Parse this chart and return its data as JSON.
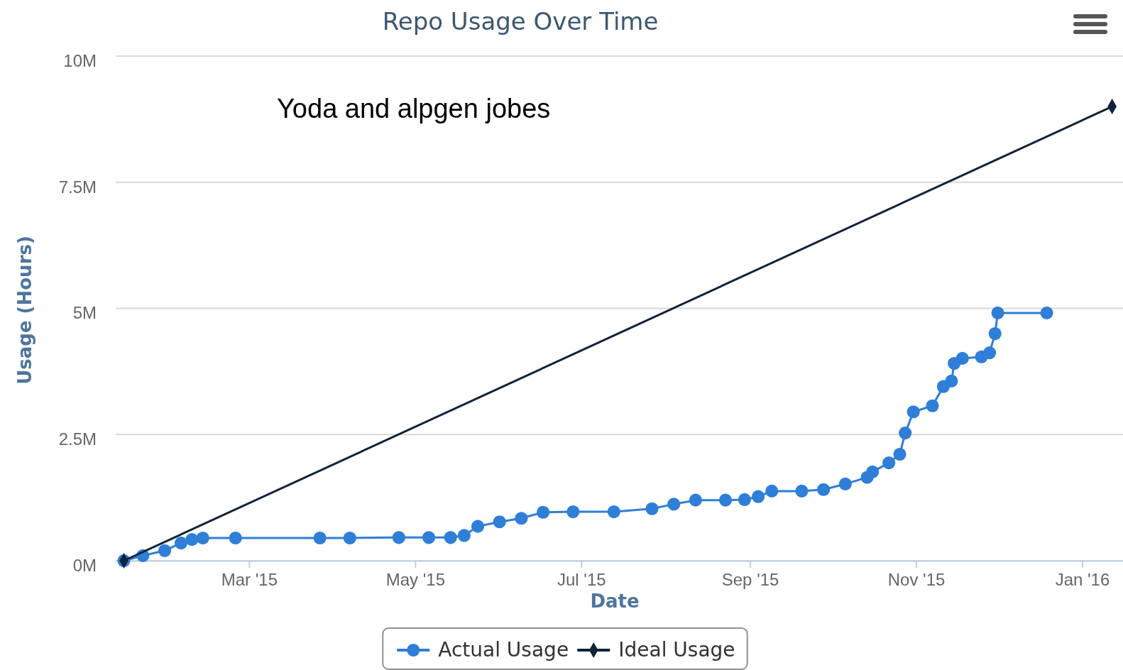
{
  "chart_data": {
    "type": "line",
    "title": "Repo Usage Over Time",
    "xlabel": "Date",
    "ylabel": "Usage (Hours)",
    "annotations": [
      "Yoda and alpgen jobes"
    ],
    "xlim": [
      "2015-01-11",
      "2016-01-16"
    ],
    "xticks": [
      {
        "value": "2015-03-01",
        "label": "Mar '15"
      },
      {
        "value": "2015-05-01",
        "label": "May '15"
      },
      {
        "value": "2015-07-01",
        "label": "Jul '15"
      },
      {
        "value": "2015-09-01",
        "label": "Sep '15"
      },
      {
        "value": "2015-11-01",
        "label": "Nov '15"
      },
      {
        "value": "2016-01-01",
        "label": "Jan '16"
      }
    ],
    "ylim": [
      0,
      10000000
    ],
    "yticks": [
      {
        "value": 0,
        "label": "0M"
      },
      {
        "value": 2500000,
        "label": "2.5M"
      },
      {
        "value": 5000000,
        "label": "5M"
      },
      {
        "value": 7500000,
        "label": "7.5M"
      },
      {
        "value": 10000000,
        "label": "10M"
      }
    ],
    "grid": "y",
    "legend": "bottom",
    "line_style": "solid",
    "series": [
      {
        "name": "Actual Usage",
        "color": "#2f7ed8",
        "marker": "circle",
        "x": [
          "2015-01-14",
          "2015-01-21",
          "2015-01-29",
          "2015-02-04",
          "2015-02-08",
          "2015-02-12",
          "2015-02-24",
          "2015-03-27",
          "2015-04-07",
          "2015-04-25",
          "2015-05-06",
          "2015-05-14",
          "2015-05-19",
          "2015-05-24",
          "2015-06-01",
          "2015-06-09",
          "2015-06-17",
          "2015-06-28",
          "2015-07-13",
          "2015-07-27",
          "2015-08-04",
          "2015-08-12",
          "2015-08-23",
          "2015-08-30",
          "2015-09-04",
          "2015-09-09",
          "2015-09-20",
          "2015-09-28",
          "2015-10-06",
          "2015-10-14",
          "2015-10-16",
          "2015-10-22",
          "2015-10-26",
          "2015-10-28",
          "2015-10-31",
          "2015-11-07",
          "2015-11-11",
          "2015-11-14",
          "2015-11-15",
          "2015-11-18",
          "2015-11-25",
          "2015-11-28",
          "2015-11-30",
          "2015-12-01",
          "2015-12-19"
        ],
        "values": [
          0,
          100000,
          200000,
          350000,
          420000,
          450000,
          450000,
          450000,
          450000,
          460000,
          460000,
          460000,
          500000,
          680000,
          770000,
          840000,
          960000,
          970000,
          970000,
          1030000,
          1120000,
          1200000,
          1200000,
          1210000,
          1270000,
          1380000,
          1380000,
          1410000,
          1520000,
          1650000,
          1760000,
          1940000,
          2110000,
          2530000,
          2950000,
          3070000,
          3450000,
          3560000,
          3910000,
          4010000,
          4040000,
          4120000,
          4500000,
          4910000,
          4910000
        ]
      },
      {
        "name": "Ideal Usage",
        "color": "#0d233a",
        "marker": "diamond",
        "x": [
          "2015-01-14",
          "2016-01-12"
        ],
        "values": [
          0,
          9000000
        ]
      }
    ]
  }
}
